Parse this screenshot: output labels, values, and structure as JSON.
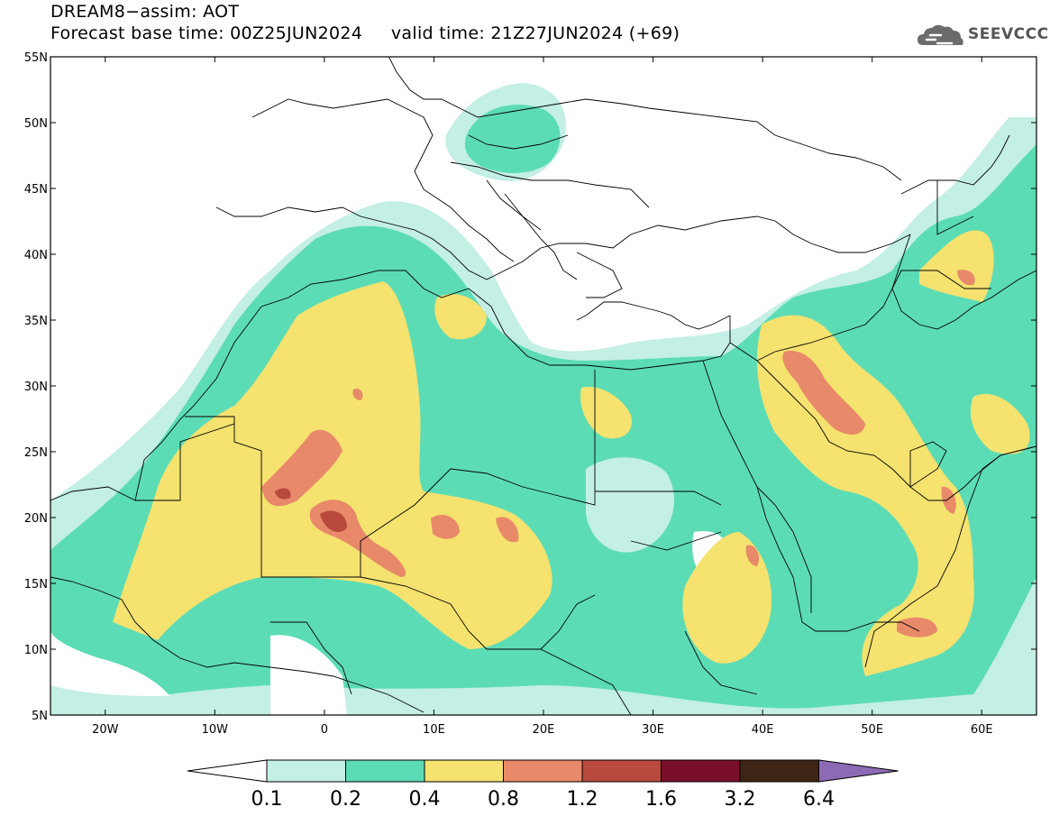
{
  "header": {
    "title_line1": "DREAM8−assim: AOT",
    "title_line2": "Forecast base time: 00Z25JUN2024     valid time: 21Z27JUN2024 (+69)",
    "logo_text": "SEEVCCC",
    "logo_icon": "cloud-icon"
  },
  "map": {
    "projection": "cylindrical equidistant",
    "lon_range": [
      -25,
      65
    ],
    "lat_range": [
      5,
      55
    ],
    "lat_ticks": [
      "55N",
      "50N",
      "45N",
      "40N",
      "35N",
      "30N",
      "25N",
      "20N",
      "15N",
      "10N",
      "5N"
    ],
    "lon_ticks": [
      "20W",
      "10W",
      "0",
      "10E",
      "20E",
      "30E",
      "40E",
      "50E",
      "60E"
    ],
    "variable": "Aerosol Optical Thickness"
  },
  "colorbar": {
    "levels": [
      "0.1",
      "0.2",
      "0.4",
      "0.8",
      "1.2",
      "1.6",
      "3.2",
      "6.4"
    ],
    "colors": [
      "#ffffff",
      "#c3efe5",
      "#5cdcb5",
      "#f5e26f",
      "#e8896a",
      "#b8493c",
      "#7a0f2a",
      "#3e2414",
      "#8c6bb4"
    ]
  },
  "chart_data": {
    "type": "heatmap",
    "title": "DREAM8−assim: AOT",
    "xlim": [
      -25,
      65
    ],
    "ylim": [
      5,
      55
    ],
    "dust_maxima": [
      {
        "lon": 1,
        "lat": 19.8,
        "aot_class": "1.2-1.6"
      },
      {
        "lon": -3,
        "lat": 21.8,
        "aot_class": "1.2-1.6"
      },
      {
        "lon": 47,
        "lat": 28,
        "aot_class": "0.8-1.2"
      },
      {
        "lon": 55,
        "lat": 11.5,
        "aot_class": "0.8-1.2"
      },
      {
        "lon": 39,
        "lat": 17,
        "aot_class": "0.8-1.2"
      },
      {
        "lon": 56,
        "lat": 38,
        "aot_class": "0.8-1.2"
      }
    ]
  }
}
